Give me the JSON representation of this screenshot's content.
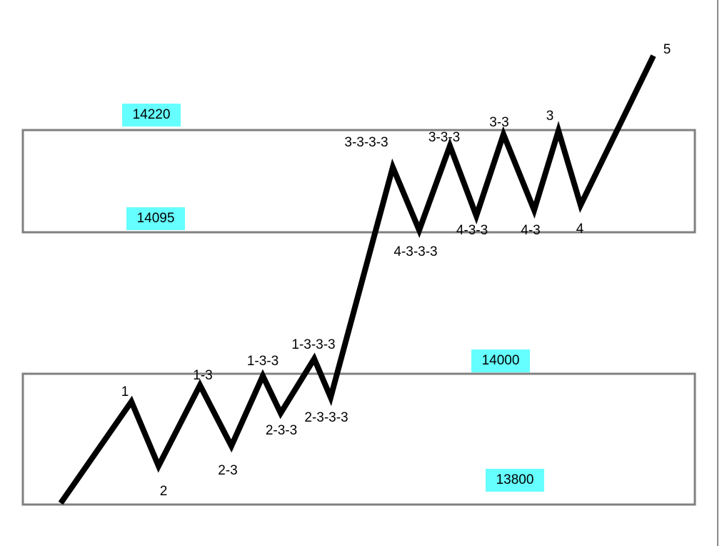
{
  "colors": {
    "zone_border": "#808080",
    "price_tag_bg": "#66ffff",
    "wave_line": "#000000"
  },
  "zones": [
    {
      "upper_price": "14220",
      "lower_price": "14095"
    },
    {
      "upper_price": "14000",
      "lower_price": "13800"
    }
  ],
  "wave_labels": [
    "1",
    "2",
    "1-3",
    "2-3",
    "1-3-3",
    "2-3-3",
    "1-3-3-3",
    "2-3-3-3",
    "3-3-3-3",
    "4-3-3-3",
    "3-3-3",
    "4-3-3",
    "3-3",
    "4-3",
    "3",
    "4",
    "5"
  ]
}
